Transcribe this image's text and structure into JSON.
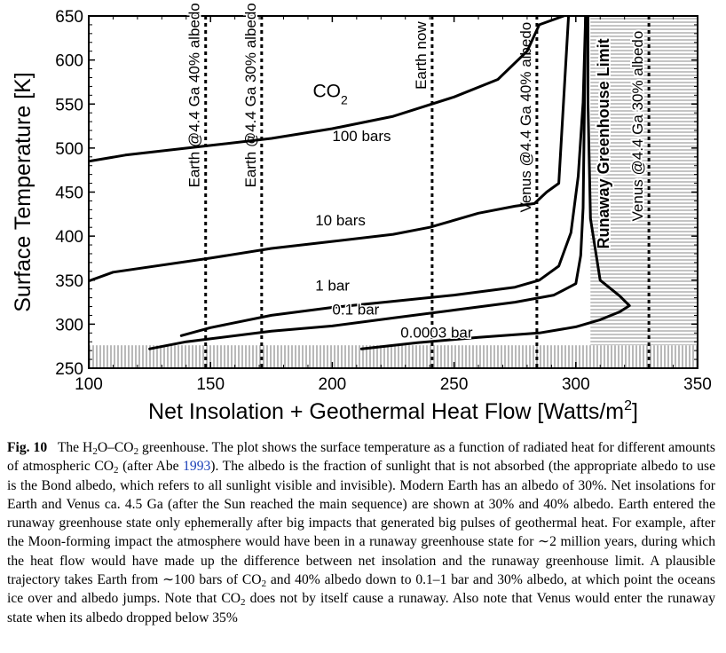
{
  "figure": {
    "chart_data": {
      "type": "line",
      "xlabel": "Net Insolation + Geothermal Heat Flow  [Watts/m",
      "xlabel_sup": "2",
      "xlabel_end": "]",
      "ylabel": "Surface Temperature [K]",
      "xlim": [
        100,
        350
      ],
      "ylim": [
        250,
        650
      ],
      "xticks": [
        100,
        150,
        200,
        250,
        300,
        350
      ],
      "yticks": [
        250,
        300,
        350,
        400,
        450,
        500,
        550,
        600,
        650
      ],
      "series": [
        {
          "name": "100 bars",
          "x": [
            100,
            115,
            150,
            175,
            200,
            225,
            250,
            268,
            280,
            285,
            295
          ],
          "y": [
            485,
            492,
            503,
            511,
            522,
            536,
            558,
            578,
            610,
            640,
            650
          ]
        },
        {
          "name": "10 bars",
          "x": [
            100,
            110,
            150,
            175,
            200,
            225,
            240,
            260,
            275,
            283,
            288,
            293,
            297
          ],
          "y": [
            349,
            359,
            375,
            386,
            394,
            402,
            410,
            426,
            434,
            437,
            450,
            460,
            650
          ]
        },
        {
          "name": "1 bar",
          "x": [
            138,
            150,
            175,
            200,
            225,
            250,
            275,
            285,
            293,
            298,
            301,
            303,
            304
          ],
          "y": [
            287,
            296,
            310,
            319,
            326,
            333,
            342,
            350,
            366,
            404,
            468,
            552,
            650
          ]
        },
        {
          "name": "0.1 bar",
          "x": [
            125,
            140,
            175,
            200,
            225,
            250,
            275,
            291,
            300,
            302,
            303,
            304
          ],
          "y": [
            272,
            280,
            292,
            298,
            307,
            316,
            325,
            333,
            346,
            378,
            432,
            650
          ]
        },
        {
          "name": "0.0003 bar",
          "x": [
            212,
            235,
            260,
            285,
            300,
            310,
            318,
            322,
            318,
            310,
            306,
            305,
            305
          ],
          "y": [
            272,
            279,
            285,
            290,
            297,
            305,
            314,
            321,
            332,
            350,
            420,
            550,
            650
          ]
        }
      ],
      "curve_labels": [
        {
          "text": "CO",
          "sub": "2",
          "x": 192,
          "y": 558
        },
        {
          "text": "100 bars",
          "x": 200,
          "y": 508
        },
        {
          "text": "10 bars",
          "x": 193,
          "y": 412
        },
        {
          "text": "1 bar",
          "x": 193,
          "y": 338
        },
        {
          "text": "0.1 bar",
          "x": 200,
          "y": 311
        },
        {
          "text": "0.0003 bar",
          "x": 228,
          "y": 285
        }
      ],
      "vertical_lines": [
        {
          "x": 148,
          "label": "Earth @4.4 Ga 40% albedo",
          "label_center_y": 560
        },
        {
          "x": 171,
          "label": "Earth @4.4 Ga 30% albedo",
          "label_center_y": 560
        },
        {
          "x": 241,
          "label": "Earth now",
          "label_center_y": 605
        },
        {
          "x": 284,
          "label": "Venus @4.4 Ga 40% albedo",
          "label_center_y": 535
        },
        {
          "x": 330,
          "label": "Venus @4.4 Ga 30% albedo",
          "label_center_y": 525
        }
      ],
      "runaway_limit": {
        "x": 304.5,
        "label": "Runaway Greenhouse Limit",
        "label_center_y": 505
      },
      "shaded_regions": [
        {
          "name": "ice-band",
          "x0": 100,
          "x1": 350,
          "y0": 250,
          "y1": 276
        },
        {
          "name": "runaway-zone",
          "x0": 306,
          "x1": 350,
          "y0": 276,
          "y1": 650
        }
      ],
      "colors": {
        "line": "#000000",
        "shade": "#b9b9b9"
      }
    }
  },
  "caption": {
    "label": "Fig. 10",
    "title_1": "The H",
    "title_sub_1": "2",
    "title_2": "O–CO",
    "title_sub_2": "2",
    "title_3": " greenhouse. The plot shows the surface temperature as a function of radiated heat for different amounts of atmospheric CO",
    "title_sub_3": "2",
    "title_4": " (after Abe ",
    "citation": "1993",
    "body_1": "). The albedo is the fraction of sunlight that is not absorbed (the appropriate albedo to use is the Bond albedo, which refers to all sunlight visible and invisible). Modern Earth has an albedo of 30%. Net insolations for Earth and Venus ca. 4.5 Ga (after the Sun reached the main sequence) are shown at 30% and 40% albedo. Earth entered the runaway greenhouse state only ephemerally after big impacts that generated big pulses of geothermal heat. For example, after the Moon-forming impact the atmosphere would have been in a runaway greenhouse state for ∼2 million years, during which the heat flow would have made up the difference between net insolation and the runaway greenhouse limit. A plausible trajectory takes Earth from ∼100 bars of CO",
    "body_sub_1": "2",
    "body_2": " and 40% albedo down to 0.1–1 bar and 30% albedo, at which point the oceans ice over and albedo jumps. Note that CO",
    "body_sub_2": "2",
    "body_3": " does not by itself cause a runaway. Also note that Venus would enter the runaway state when its albedo dropped below 35%"
  }
}
